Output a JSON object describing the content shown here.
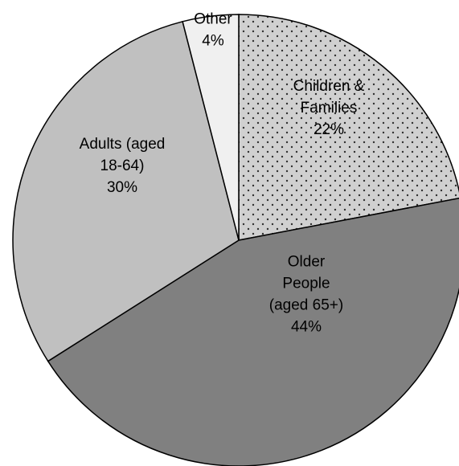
{
  "chart_data": {
    "type": "pie",
    "title": "",
    "slices": [
      {
        "label_lines": [
          "Children &",
          "Families"
        ],
        "value_label": "22%",
        "value": 22,
        "color": "#d0d0d0",
        "pattern": "dots"
      },
      {
        "label_lines": [
          "Older",
          "People",
          "(aged 65+)"
        ],
        "value_label": "44%",
        "value": 44,
        "color": "#808080",
        "pattern": "none"
      },
      {
        "label_lines": [
          "Adults (aged",
          "18-64)"
        ],
        "value_label": "30%",
        "value": 30,
        "color": "#c0c0c0",
        "pattern": "none"
      },
      {
        "label_lines": [
          "Other"
        ],
        "value_label": "4%",
        "value": 4,
        "color": "#f0f0f0",
        "pattern": "none"
      }
    ],
    "start": "12 o'clock",
    "direction": "clockwise",
    "legend": "none"
  }
}
